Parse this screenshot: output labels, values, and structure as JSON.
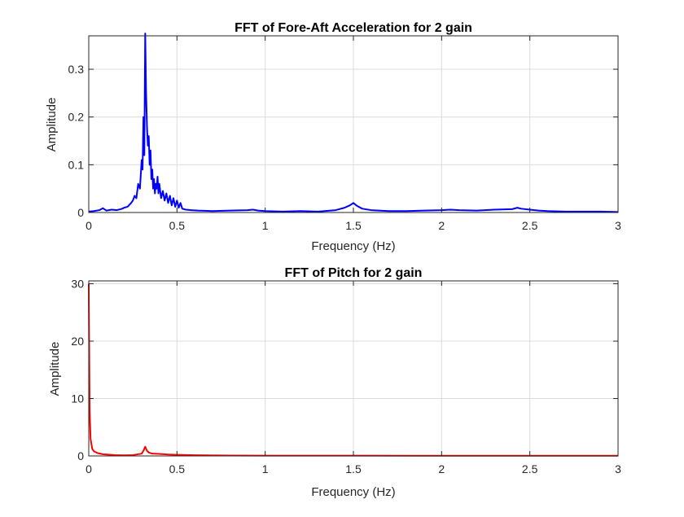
{
  "chart_data": [
    {
      "type": "line",
      "title": "FFT of Fore-Aft Acceleration for 2 gain",
      "xlabel": "Frequency (Hz)",
      "ylabel": "Amplitude",
      "xlim": [
        0,
        3
      ],
      "ylim": [
        0,
        0.37
      ],
      "xticks": [
        0,
        0.5,
        1,
        1.5,
        2,
        2.5,
        3
      ],
      "xtick_labels": [
        "0",
        "0.5",
        "1",
        "1.5",
        "2",
        "2.5",
        "3"
      ],
      "yticks": [
        0,
        0.1,
        0.2,
        0.3
      ],
      "ytick_labels": [
        "0",
        "0.1",
        "0.2",
        "0.3"
      ],
      "grid": true,
      "series": [
        {
          "color": "#0000ff",
          "x": [
            0,
            0.03,
            0.06,
            0.08,
            0.1,
            0.13,
            0.16,
            0.19,
            0.2,
            0.22,
            0.24,
            0.25,
            0.26,
            0.27,
            0.28,
            0.29,
            0.3,
            0.305,
            0.31,
            0.315,
            0.32,
            0.325,
            0.33,
            0.335,
            0.34,
            0.345,
            0.35,
            0.355,
            0.36,
            0.365,
            0.37,
            0.375,
            0.38,
            0.385,
            0.39,
            0.395,
            0.4,
            0.41,
            0.42,
            0.43,
            0.44,
            0.45,
            0.46,
            0.47,
            0.48,
            0.49,
            0.5,
            0.51,
            0.52,
            0.53,
            0.55,
            0.58,
            0.62,
            0.7,
            0.8,
            0.9,
            0.93,
            0.96,
            1.0,
            1.1,
            1.2,
            1.3,
            1.4,
            1.45,
            1.48,
            1.5,
            1.52,
            1.55,
            1.6,
            1.7,
            1.8,
            1.9,
            2.0,
            2.05,
            2.1,
            2.2,
            2.3,
            2.4,
            2.43,
            2.45,
            2.5,
            2.55,
            2.6,
            2.7,
            2.8,
            2.9,
            3.0
          ],
          "y": [
            0.002,
            0.003,
            0.005,
            0.009,
            0.004,
            0.006,
            0.005,
            0.008,
            0.01,
            0.012,
            0.02,
            0.025,
            0.035,
            0.03,
            0.06,
            0.05,
            0.11,
            0.09,
            0.2,
            0.12,
            0.375,
            0.25,
            0.18,
            0.14,
            0.16,
            0.1,
            0.13,
            0.07,
            0.09,
            0.05,
            0.07,
            0.04,
            0.06,
            0.05,
            0.075,
            0.04,
            0.06,
            0.03,
            0.045,
            0.025,
            0.04,
            0.02,
            0.035,
            0.015,
            0.03,
            0.012,
            0.025,
            0.01,
            0.02,
            0.008,
            0.006,
            0.005,
            0.004,
            0.003,
            0.004,
            0.005,
            0.006,
            0.004,
            0.003,
            0.002,
            0.003,
            0.002,
            0.005,
            0.01,
            0.015,
            0.02,
            0.014,
            0.008,
            0.005,
            0.003,
            0.003,
            0.004,
            0.005,
            0.006,
            0.005,
            0.004,
            0.006,
            0.007,
            0.01,
            0.008,
            0.006,
            0.004,
            0.003,
            0.002,
            0.002,
            0.002,
            0.001
          ]
        }
      ]
    },
    {
      "type": "line",
      "title": "FFT of Pitch for 2 gain",
      "xlabel": "Frequency (Hz)",
      "ylabel": "Amplitude",
      "xlim": [
        0,
        3
      ],
      "ylim": [
        0,
        30.5
      ],
      "xticks": [
        0,
        0.5,
        1,
        1.5,
        2,
        2.5,
        3
      ],
      "xtick_labels": [
        "0",
        "0.5",
        "1",
        "1.5",
        "2",
        "2.5",
        "3"
      ],
      "yticks": [
        0,
        10,
        20,
        30
      ],
      "ytick_labels": [
        "0",
        "10",
        "20",
        "30"
      ],
      "grid": true,
      "series": [
        {
          "color": "#ff0000",
          "x": [
            0,
            0.002,
            0.005,
            0.01,
            0.02,
            0.03,
            0.05,
            0.08,
            0.1,
            0.15,
            0.2,
            0.25,
            0.3,
            0.31,
            0.32,
            0.33,
            0.34,
            0.36,
            0.4,
            0.45,
            0.5,
            0.6,
            0.8,
            1.0,
            1.5,
            2.0,
            2.5,
            3.0
          ],
          "y": [
            30,
            20,
            8,
            3,
            1.2,
            0.8,
            0.5,
            0.3,
            0.25,
            0.15,
            0.1,
            0.15,
            0.4,
            0.9,
            1.6,
            0.9,
            0.6,
            0.4,
            0.35,
            0.25,
            0.2,
            0.12,
            0.08,
            0.06,
            0.05,
            0.04,
            0.04,
            0.03
          ]
        }
      ]
    }
  ]
}
